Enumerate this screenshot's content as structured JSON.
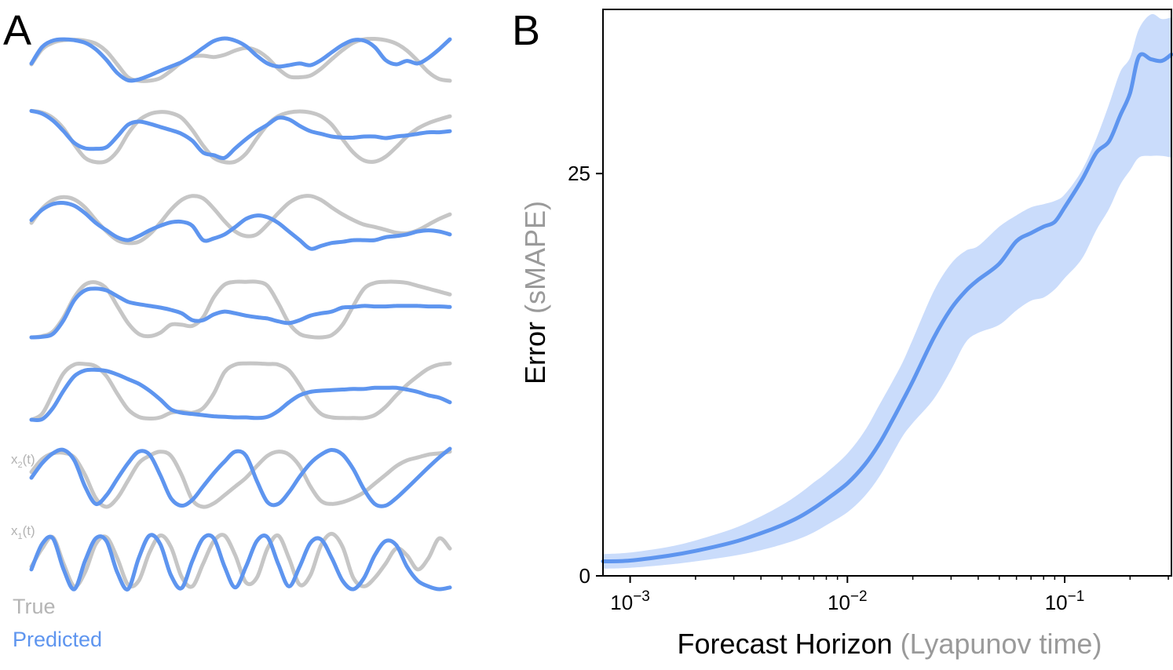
{
  "panel_a": {
    "letter": "A",
    "legend": {
      "true_label": "True",
      "predicted_label": "Predicted"
    },
    "row_labels": {
      "x2": {
        "main": "x",
        "sub": "2",
        "tail": "(t)"
      },
      "x1": {
        "main": "x",
        "sub": "1",
        "tail": "(t)"
      }
    },
    "colors": {
      "true": "#c6c6c6",
      "predicted": "#5e95ef"
    }
  },
  "panel_b": {
    "letter": "B",
    "ylabel": {
      "main": "Error",
      "paren": "(sMAPE)"
    },
    "xlabel": {
      "main": "Forecast Horizon",
      "paren": "(Lyapunov time)"
    },
    "colors": {
      "line": "#5e95ef",
      "band": "#cadcfb"
    }
  },
  "chart_data": [
    {
      "type": "line",
      "title": "",
      "xlabel": "Forecast Horizon (Lyapunov time)",
      "ylabel": "Error (sMAPE)",
      "xscale": "log",
      "xlim": [
        0.00075,
        0.31
      ],
      "ylim": [
        0,
        35.2
      ],
      "xticks": [
        0.001,
        0.01,
        0.1
      ],
      "xtick_labels": [
        "10^-3",
        "10^-2",
        "10^-1"
      ],
      "yticks": [
        0,
        25
      ],
      "ytick_labels": [
        "0",
        "25"
      ],
      "grid": false,
      "series": [
        {
          "x": [
            0.00075,
            0.001,
            0.0015,
            0.002,
            0.003,
            0.004,
            0.005,
            0.006,
            0.007,
            0.008,
            0.01,
            0.012,
            0.014,
            0.016,
            0.018,
            0.02,
            0.025,
            0.03,
            0.035,
            0.04,
            0.05,
            0.06,
            0.07,
            0.08,
            0.09,
            0.1,
            0.12,
            0.14,
            0.16,
            0.18,
            0.2,
            0.22,
            0.25,
            0.28,
            0.31
          ],
          "y": [
            0.9,
            0.95,
            1.25,
            1.55,
            2.1,
            2.65,
            3.15,
            3.65,
            4.2,
            4.75,
            5.75,
            6.9,
            8.2,
            9.6,
            10.9,
            12.1,
            14.8,
            16.6,
            17.7,
            18.4,
            19.4,
            20.8,
            21.3,
            21.7,
            22.0,
            22.9,
            24.6,
            26.3,
            27.0,
            28.6,
            30.0,
            32.3,
            32.1,
            32.0,
            32.4
          ],
          "lower": [
            0.45,
            0.5,
            0.7,
            0.9,
            1.25,
            1.6,
            1.95,
            2.3,
            2.7,
            3.15,
            3.95,
            4.95,
            6.15,
            7.5,
            8.7,
            9.5,
            11.0,
            12.8,
            14.5,
            15.1,
            15.6,
            16.5,
            17.1,
            17.3,
            17.8,
            18.5,
            19.7,
            21.5,
            22.8,
            24.3,
            25.2,
            26.0,
            26.1,
            26.1,
            26.0
          ],
          "upper": [
            1.35,
            1.45,
            1.8,
            2.2,
            2.95,
            3.7,
            4.4,
            5.1,
            5.8,
            6.4,
            7.6,
            9.0,
            10.6,
            12.0,
            13.3,
            14.7,
            17.7,
            19.4,
            20.2,
            20.5,
            21.7,
            22.4,
            22.9,
            23.1,
            23.3,
            23.7,
            25.2,
            27.2,
            29.3,
            31.3,
            32.2,
            34.0,
            34.9,
            34.6,
            34.7
          ]
        }
      ]
    },
    {
      "type": "line",
      "title": "",
      "xlabel": "",
      "ylabel": "",
      "note": "Panel A: seven stacked time-series rows, each with a True (grey) and Predicted (blue) trace. Values are normalized 0-1 per row over normalized time 0-1.",
      "x": [
        0,
        0.0256,
        0.0513,
        0.0769,
        0.1026,
        0.1282,
        0.1538,
        0.1795,
        0.2051,
        0.2308,
        0.2564,
        0.2821,
        0.3077,
        0.3333,
        0.359,
        0.3846,
        0.4103,
        0.4359,
        0.4615,
        0.4872,
        0.5128,
        0.5385,
        0.5641,
        0.5897,
        0.6154,
        0.641,
        0.6667,
        0.6923,
        0.7179,
        0.7436,
        0.7692,
        0.7949,
        0.8205,
        0.8462,
        0.8718,
        0.8974,
        0.9231,
        0.9487,
        0.9744,
        1
      ],
      "rows": [
        {
          "name": "",
          "true": [
            0.4,
            0.75,
            0.9,
            0.96,
            0.97,
            0.95,
            0.88,
            0.7,
            0.4,
            0.1,
            0.02,
            0.02,
            0.08,
            0.25,
            0.45,
            0.58,
            0.6,
            0.57,
            0.62,
            0.72,
            0.78,
            0.72,
            0.55,
            0.3,
            0.12,
            0.1,
            0.14,
            0.3,
            0.52,
            0.73,
            0.9,
            0.98,
            0.99,
            0.96,
            0.88,
            0.72,
            0.48,
            0.22,
            0.06,
            0.02
          ],
          "predicted": [
            0.42,
            0.8,
            0.95,
            0.98,
            0.96,
            0.9,
            0.75,
            0.5,
            0.2,
            0.03,
            0.05,
            0.14,
            0.25,
            0.35,
            0.45,
            0.6,
            0.78,
            0.94,
            1.0,
            0.95,
            0.82,
            0.6,
            0.42,
            0.35,
            0.38,
            0.42,
            0.38,
            0.5,
            0.68,
            0.85,
            0.96,
            0.95,
            0.8,
            0.5,
            0.4,
            0.48,
            0.42,
            0.55,
            0.75,
            0.98
          ]
        },
        {
          "name": "",
          "true": [
            0.98,
            0.95,
            0.85,
            0.65,
            0.35,
            0.1,
            0.02,
            0.04,
            0.22,
            0.55,
            0.8,
            0.92,
            0.96,
            0.94,
            0.85,
            0.62,
            0.33,
            0.1,
            0.02,
            0.03,
            0.18,
            0.46,
            0.72,
            0.88,
            0.95,
            0.97,
            0.95,
            0.88,
            0.72,
            0.45,
            0.2,
            0.05,
            0.03,
            0.12,
            0.3,
            0.5,
            0.65,
            0.75,
            0.82,
            0.88
          ],
          "predicted": [
            0.98,
            0.93,
            0.8,
            0.6,
            0.38,
            0.28,
            0.27,
            0.3,
            0.5,
            0.72,
            0.78,
            0.74,
            0.68,
            0.62,
            0.55,
            0.42,
            0.2,
            0.15,
            0.1,
            0.28,
            0.45,
            0.6,
            0.72,
            0.85,
            0.82,
            0.7,
            0.6,
            0.55,
            0.5,
            0.48,
            0.48,
            0.5,
            0.5,
            0.47,
            0.5,
            0.52,
            0.55,
            0.58,
            0.58,
            0.6
          ]
        },
        {
          "name": "",
          "true": [
            0.45,
            0.7,
            0.85,
            0.9,
            0.86,
            0.72,
            0.5,
            0.3,
            0.15,
            0.1,
            0.12,
            0.25,
            0.45,
            0.68,
            0.85,
            0.92,
            0.88,
            0.7,
            0.48,
            0.3,
            0.22,
            0.25,
            0.42,
            0.62,
            0.8,
            0.9,
            0.92,
            0.85,
            0.72,
            0.6,
            0.5,
            0.42,
            0.38,
            0.33,
            0.28,
            0.27,
            0.32,
            0.42,
            0.52,
            0.6
          ],
          "predicted": [
            0.5,
            0.68,
            0.78,
            0.8,
            0.75,
            0.62,
            0.45,
            0.32,
            0.2,
            0.15,
            0.22,
            0.32,
            0.4,
            0.46,
            0.47,
            0.4,
            0.15,
            0.18,
            0.25,
            0.38,
            0.52,
            0.58,
            0.55,
            0.45,
            0.3,
            0.15,
            0.0,
            0.05,
            0.1,
            0.12,
            0.15,
            0.15,
            0.15,
            0.2,
            0.22,
            0.25,
            0.3,
            0.32,
            0.3,
            0.25
          ]
        },
        {
          "name": "",
          "true": [
            0.0,
            0.02,
            0.1,
            0.35,
            0.7,
            0.92,
            0.96,
            0.85,
            0.55,
            0.25,
            0.06,
            0.02,
            0.08,
            0.22,
            0.22,
            0.2,
            0.35,
            0.7,
            0.92,
            0.97,
            0.97,
            0.97,
            0.9,
            0.6,
            0.25,
            0.06,
            0.01,
            0.0,
            0.04,
            0.22,
            0.55,
            0.85,
            0.95,
            0.97,
            0.97,
            0.95,
            0.9,
            0.85,
            0.8,
            0.75
          ],
          "predicted": [
            0.0,
            0.01,
            0.06,
            0.3,
            0.65,
            0.82,
            0.85,
            0.82,
            0.72,
            0.62,
            0.58,
            0.55,
            0.52,
            0.48,
            0.42,
            0.3,
            0.3,
            0.4,
            0.45,
            0.42,
            0.38,
            0.35,
            0.33,
            0.28,
            0.25,
            0.3,
            0.38,
            0.42,
            0.45,
            0.52,
            0.53,
            0.55,
            0.54,
            0.54,
            0.55,
            0.55,
            0.55,
            0.54,
            0.54,
            0.53
          ]
        },
        {
          "name": "",
          "true": [
            0.0,
            0.1,
            0.45,
            0.8,
            0.95,
            0.96,
            0.92,
            0.75,
            0.45,
            0.18,
            0.05,
            0.02,
            0.04,
            0.12,
            0.14,
            0.12,
            0.2,
            0.45,
            0.82,
            0.95,
            0.97,
            0.97,
            0.96,
            0.95,
            0.85,
            0.6,
            0.3,
            0.1,
            0.04,
            0.03,
            0.03,
            0.03,
            0.08,
            0.22,
            0.42,
            0.6,
            0.75,
            0.88,
            0.95,
            0.97
          ],
          "predicted": [
            0.0,
            0.01,
            0.2,
            0.5,
            0.75,
            0.85,
            0.86,
            0.84,
            0.78,
            0.7,
            0.62,
            0.5,
            0.35,
            0.18,
            0.12,
            0.1,
            0.08,
            0.06,
            0.05,
            0.04,
            0.04,
            0.03,
            0.05,
            0.15,
            0.3,
            0.42,
            0.48,
            0.5,
            0.51,
            0.52,
            0.53,
            0.53,
            0.55,
            0.55,
            0.55,
            0.52,
            0.48,
            0.42,
            0.38,
            0.3
          ]
        },
        {
          "name": "x2(t)",
          "true": [
            0.6,
            0.82,
            0.92,
            0.93,
            0.85,
            0.55,
            0.15,
            0.0,
            0.15,
            0.45,
            0.75,
            0.88,
            0.95,
            0.88,
            0.55,
            0.12,
            0.0,
            0.06,
            0.2,
            0.35,
            0.5,
            0.7,
            0.88,
            0.95,
            0.9,
            0.7,
            0.35,
            0.1,
            0.05,
            0.08,
            0.15,
            0.25,
            0.4,
            0.55,
            0.7,
            0.8,
            0.85,
            0.9,
            0.92,
            0.95
          ],
          "predicted": [
            0.5,
            0.75,
            0.92,
            0.98,
            0.8,
            0.35,
            0.05,
            0.2,
            0.48,
            0.75,
            0.95,
            0.9,
            0.55,
            0.15,
            0.02,
            0.12,
            0.35,
            0.58,
            0.78,
            0.95,
            0.88,
            0.45,
            0.08,
            0.05,
            0.25,
            0.52,
            0.75,
            0.9,
            0.98,
            0.9,
            0.65,
            0.3,
            0.05,
            0.02,
            0.15,
            0.32,
            0.5,
            0.68,
            0.85,
            1.0
          ]
        },
        {
          "name": "x1(t)",
          "true": [
            0.4,
            0.72,
            0.92,
            0.45,
            0.05,
            0.3,
            0.8,
            0.92,
            0.55,
            0.08,
            0.15,
            0.65,
            0.95,
            0.75,
            0.22,
            0.05,
            0.45,
            0.85,
            0.95,
            0.6,
            0.12,
            0.2,
            0.72,
            0.95,
            0.55,
            0.08,
            0.25,
            0.78,
            0.98,
            0.75,
            0.2,
            0.05,
            0.2,
            0.45,
            0.72,
            0.6,
            0.35,
            0.55,
            0.9,
            0.72
          ],
          "predicted": [
            0.35,
            0.8,
            0.9,
            0.35,
            0.0,
            0.5,
            0.9,
            0.85,
            0.3,
            0.0,
            0.55,
            0.95,
            0.8,
            0.25,
            0.02,
            0.5,
            0.9,
            0.9,
            0.4,
            0.03,
            0.4,
            0.85,
            0.92,
            0.45,
            0.05,
            0.4,
            0.82,
            0.88,
            0.55,
            0.15,
            0.0,
            0.2,
            0.6,
            0.85,
            0.78,
            0.4,
            0.15,
            0.05,
            0.0,
            0.03
          ]
        }
      ]
    }
  ]
}
